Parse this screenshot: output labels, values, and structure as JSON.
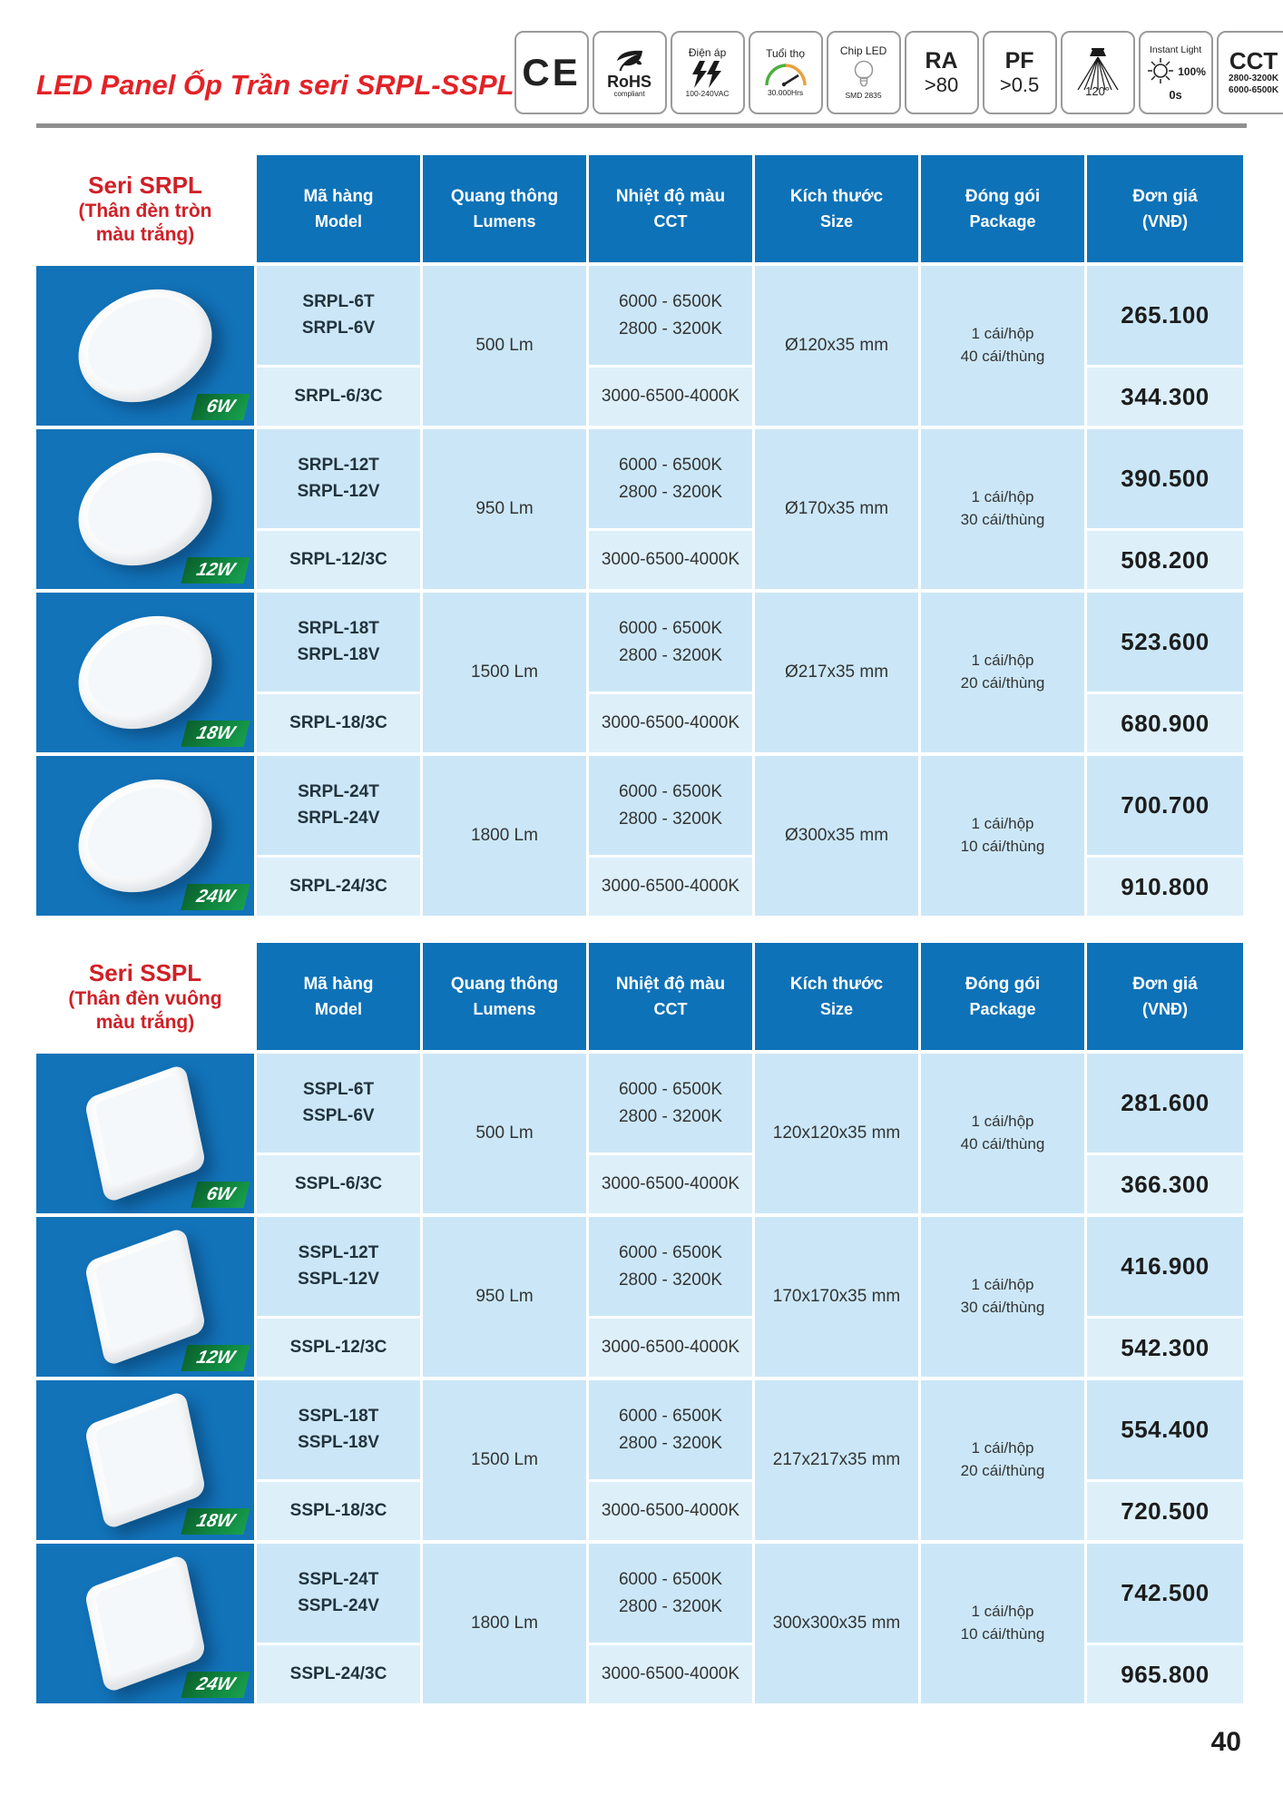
{
  "page": {
    "number": "40"
  },
  "header": {
    "title": "LED Panel Ốp Trần seri SRPL-SSPL",
    "badges": {
      "ce": {
        "label": "CE"
      },
      "rohs": {
        "label": "RoHS",
        "sub": "compliant"
      },
      "voltage": {
        "title": "Điện áp",
        "sub": "100-240VAC"
      },
      "life": {
        "title": "Tuổi thọ",
        "sub": "30.000Hrs"
      },
      "chip": {
        "title": "Chip LED",
        "sub": "SMD 2835"
      },
      "ra": {
        "title": "RA",
        "value": ">80"
      },
      "pf": {
        "title": "PF",
        "value": ">0.5"
      },
      "beam": {
        "value": "120°"
      },
      "instant": {
        "title": "Instant Light",
        "pct": "100%",
        "sec": "0s"
      },
      "cct": {
        "title": "CCT",
        "line1": "2800-3200K",
        "line2": "6000-6500K"
      }
    }
  },
  "columns": [
    {
      "vi": "Mã hàng",
      "en": "Model"
    },
    {
      "vi": "Quang thông",
      "en": "Lumens"
    },
    {
      "vi": "Nhiệt độ màu",
      "en": "CCT"
    },
    {
      "vi": "Kích thước",
      "en": "Size"
    },
    {
      "vi": "Đóng gói",
      "en": "Package"
    },
    {
      "vi": "Đơn giá",
      "en": "(VNĐ)"
    }
  ],
  "colors": {
    "accent_red": "#e32227",
    "header_blue": "#0d72b8",
    "image_blue": "#1273b9",
    "row_light": "#cbe7f7",
    "row_lighter": "#ddf0fa",
    "badge_green": "#10873f"
  },
  "sections": [
    {
      "series_title": "Seri SRPL",
      "subtitle": [
        "(Thân đèn tròn",
        "màu trắng)"
      ],
      "shape": "round",
      "rows": [
        {
          "watt": "6W",
          "models": [
            "SRPL-6T",
            "SRPL-6V"
          ],
          "model3c": "SRPL-6/3C",
          "lumens": "500 Lm",
          "cct": [
            "6000 - 6500K",
            "2800 - 3200K"
          ],
          "cct3c": "3000-6500-4000K",
          "size": "Ø120x35 mm",
          "package": [
            "1 cái/hộp",
            "40 cái/thùng"
          ],
          "price1": "265.100",
          "price2": "344.300"
        },
        {
          "watt": "12W",
          "models": [
            "SRPL-12T",
            "SRPL-12V"
          ],
          "model3c": "SRPL-12/3C",
          "lumens": "950 Lm",
          "cct": [
            "6000 - 6500K",
            "2800 - 3200K"
          ],
          "cct3c": "3000-6500-4000K",
          "size": "Ø170x35 mm",
          "package": [
            "1 cái/hộp",
            "30 cái/thùng"
          ],
          "price1": "390.500",
          "price2": "508.200"
        },
        {
          "watt": "18W",
          "models": [
            "SRPL-18T",
            "SRPL-18V"
          ],
          "model3c": "SRPL-18/3C",
          "lumens": "1500 Lm",
          "cct": [
            "6000 - 6500K",
            "2800 - 3200K"
          ],
          "cct3c": "3000-6500-4000K",
          "size": "Ø217x35 mm",
          "package": [
            "1 cái/hộp",
            "20 cái/thùng"
          ],
          "price1": "523.600",
          "price2": "680.900"
        },
        {
          "watt": "24W",
          "models": [
            "SRPL-24T",
            "SRPL-24V"
          ],
          "model3c": "SRPL-24/3C",
          "lumens": "1800 Lm",
          "cct": [
            "6000 - 6500K",
            "2800 - 3200K"
          ],
          "cct3c": "3000-6500-4000K",
          "size": "Ø300x35 mm",
          "package": [
            "1 cái/hộp",
            "10 cái/thùng"
          ],
          "price1": "700.700",
          "price2": "910.800"
        }
      ]
    },
    {
      "series_title": "Seri SSPL",
      "subtitle": [
        "(Thân đèn vuông",
        "màu trắng)"
      ],
      "shape": "square",
      "rows": [
        {
          "watt": "6W",
          "models": [
            "SSPL-6T",
            "SSPL-6V"
          ],
          "model3c": "SSPL-6/3C",
          "lumens": "500 Lm",
          "cct": [
            "6000 - 6500K",
            "2800 - 3200K"
          ],
          "cct3c": "3000-6500-4000K",
          "size": "120x120x35 mm",
          "package": [
            "1 cái/hộp",
            "40 cái/thùng"
          ],
          "price1": "281.600",
          "price2": "366.300"
        },
        {
          "watt": "12W",
          "models": [
            "SSPL-12T",
            "SSPL-12V"
          ],
          "model3c": "SSPL-12/3C",
          "lumens": "950 Lm",
          "cct": [
            "6000 - 6500K",
            "2800 - 3200K"
          ],
          "cct3c": "3000-6500-4000K",
          "size": "170x170x35 mm",
          "package": [
            "1 cái/hộp",
            "30 cái/thùng"
          ],
          "price1": "416.900",
          "price2": "542.300"
        },
        {
          "watt": "18W",
          "models": [
            "SSPL-18T",
            "SSPL-18V"
          ],
          "model3c": "SSPL-18/3C",
          "lumens": "1500 Lm",
          "cct": [
            "6000 - 6500K",
            "2800 - 3200K"
          ],
          "cct3c": "3000-6500-4000K",
          "size": "217x217x35 mm",
          "package": [
            "1 cái/hộp",
            "20 cái/thùng"
          ],
          "price1": "554.400",
          "price2": "720.500"
        },
        {
          "watt": "24W",
          "models": [
            "SSPL-24T",
            "SSPL-24V"
          ],
          "model3c": "SSPL-24/3C",
          "lumens": "1800 Lm",
          "cct": [
            "6000 - 6500K",
            "2800 - 3200K"
          ],
          "cct3c": "3000-6500-4000K",
          "size": "300x300x35 mm",
          "package": [
            "1 cái/hộp",
            "10 cái/thùng"
          ],
          "price1": "742.500",
          "price2": "965.800"
        }
      ]
    }
  ]
}
